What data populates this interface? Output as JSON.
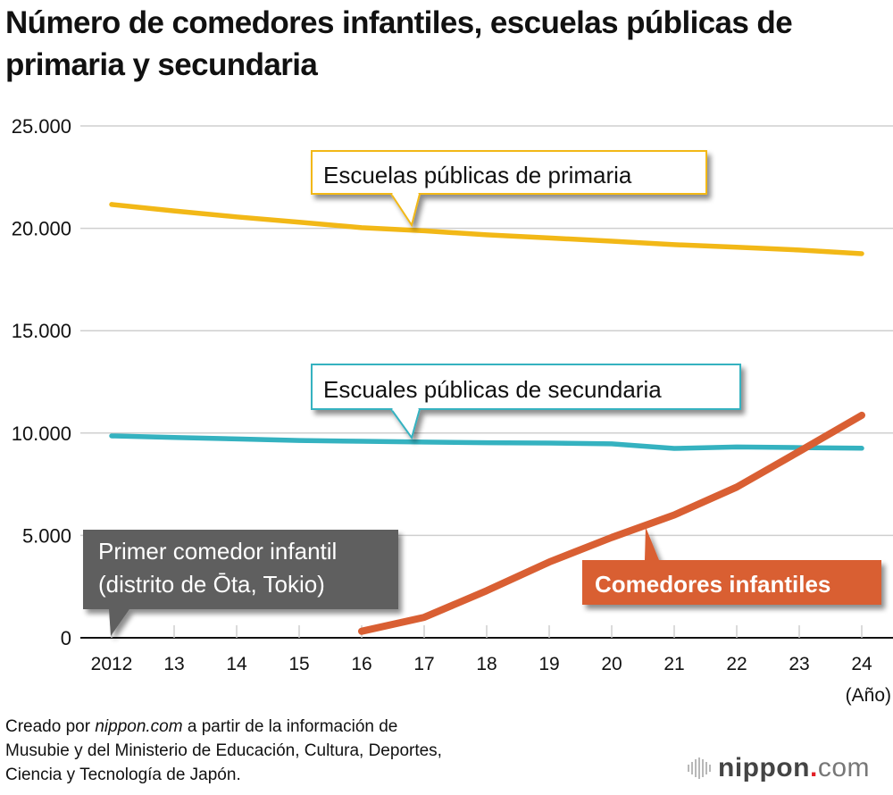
{
  "chart_data": {
    "type": "line",
    "title": "Número de comedores infantiles, escuelas públicas de primaria y secundaria",
    "xlabel": "(Año)",
    "ylabel": "",
    "x": [
      "2012",
      "13",
      "14",
      "15",
      "16",
      "17",
      "18",
      "19",
      "20",
      "21",
      "22",
      "23",
      "24"
    ],
    "ylim": [
      0,
      25000
    ],
    "yticks": [
      0,
      5000,
      10000,
      15000,
      20000,
      25000
    ],
    "ytick_labels": [
      "0",
      "5.000",
      "10.000",
      "15.000",
      "20.000",
      "25.000"
    ],
    "grid": true,
    "series": [
      {
        "name": "Escuelas públicas de primaria",
        "color": "#f2b817",
        "values": [
          21166,
          20852,
          20558,
          20302,
          20030,
          19880,
          19680,
          19530,
          19370,
          19200,
          19080,
          18940,
          18760
        ]
      },
      {
        "name": "Escuales públicas de secundaria",
        "color": "#35b2c0",
        "values": [
          9860,
          9780,
          9710,
          9640,
          9600,
          9560,
          9530,
          9510,
          9470,
          9250,
          9320,
          9290,
          9260
        ]
      },
      {
        "name": "Comedores infantiles",
        "color": "#d95f33",
        "values": [
          null,
          null,
          null,
          null,
          319,
          1000,
          2300,
          3700,
          4900,
          6000,
          7360,
          9100,
          10870
        ]
      }
    ],
    "annotations": [
      {
        "text": [
          "Escuelas públicas de primaria"
        ],
        "style": "outline",
        "color": "#f2b817"
      },
      {
        "text": [
          "Escuales públicas de secundaria"
        ],
        "style": "outline",
        "color": "#35b2c0"
      },
      {
        "text": [
          "Primer comedor infantil",
          "(distrito de Ōta, Tokio)"
        ],
        "style": "filled",
        "color": "#5f5f5f",
        "points_to": "2012"
      },
      {
        "text": [
          "Comedores infantiles"
        ],
        "style": "filled",
        "color": "#d95f33"
      }
    ]
  },
  "footer": {
    "line1_prefix": "Creado por ",
    "line1_source": "nippon.com",
    "line1_suffix": " a partir de la información de",
    "line2": "Musubie y del Ministerio de Educación, Cultura, Deportes,",
    "line3": "Ciencia y Tecnología de Japón."
  },
  "logo": {
    "name": "nippon",
    "dot": ".",
    "tld": "com"
  }
}
